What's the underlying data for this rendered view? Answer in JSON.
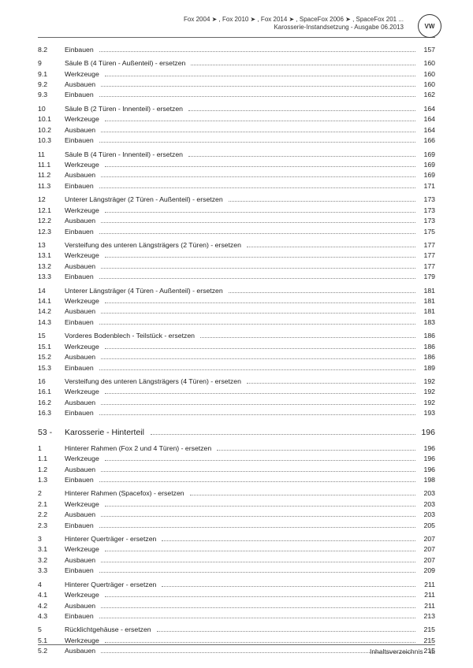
{
  "header": {
    "line1": "Fox 2004 ➤ , Fox 2010 ➤ , Fox 2014 ➤ , SpaceFox 2006 ➤ , SpaceFox 201 ...",
    "line2": "Karosserie-Instandsetzung - Ausgabe 06.2013",
    "logo": "VW"
  },
  "entries": [
    {
      "n": "8.2",
      "t": "Einbauen",
      "p": "157"
    },
    {
      "spacer": true
    },
    {
      "n": "9",
      "t": "Säule B (4 Türen - Außenteil) - ersetzen",
      "p": "160"
    },
    {
      "n": "9.1",
      "t": "Werkzeuge",
      "p": "160"
    },
    {
      "n": "9.2",
      "t": "Ausbauen",
      "p": "160"
    },
    {
      "n": "9.3",
      "t": "Einbauen",
      "p": "162"
    },
    {
      "spacer": true
    },
    {
      "n": "10",
      "t": "Säule B (2 Türen - Innenteil) - ersetzen",
      "p": "164"
    },
    {
      "n": "10.1",
      "t": "Werkzeuge",
      "p": "164"
    },
    {
      "n": "10.2",
      "t": "Ausbauen",
      "p": "164"
    },
    {
      "n": "10.3",
      "t": "Einbauen",
      "p": "166"
    },
    {
      "spacer": true
    },
    {
      "n": "11",
      "t": "Säule B (4 Türen - Innenteil) - ersetzen",
      "p": "169"
    },
    {
      "n": "11.1",
      "t": "Werkzeuge",
      "p": "169"
    },
    {
      "n": "11.2",
      "t": "Ausbauen",
      "p": "169"
    },
    {
      "n": "11.3",
      "t": "Einbauen",
      "p": "171"
    },
    {
      "spacer": true
    },
    {
      "n": "12",
      "t": "Unterer Längsträger (2 Türen - Außenteil) - ersetzen",
      "p": "173"
    },
    {
      "n": "12.1",
      "t": "Werkzeuge",
      "p": "173"
    },
    {
      "n": "12.2",
      "t": "Ausbauen",
      "p": "173"
    },
    {
      "n": "12.3",
      "t": "Einbauen",
      "p": "175"
    },
    {
      "spacer": true
    },
    {
      "n": "13",
      "t": "Versteifung des unteren Längsträgers (2 Türen) - ersetzen",
      "p": "177"
    },
    {
      "n": "13.1",
      "t": "Werkzeuge",
      "p": "177"
    },
    {
      "n": "13.2",
      "t": "Ausbauen",
      "p": "177"
    },
    {
      "n": "13.3",
      "t": "Einbauen",
      "p": "179"
    },
    {
      "spacer": true
    },
    {
      "n": "14",
      "t": "Unterer Längsträger (4 Türen - Außenteil) - ersetzen",
      "p": "181"
    },
    {
      "n": "14.1",
      "t": "Werkzeuge",
      "p": "181"
    },
    {
      "n": "14.2",
      "t": "Ausbauen",
      "p": "181"
    },
    {
      "n": "14.3",
      "t": "Einbauen",
      "p": "183"
    },
    {
      "spacer": true
    },
    {
      "n": "15",
      "t": "Vorderes Bodenblech - Teilstück - ersetzen",
      "p": "186"
    },
    {
      "n": "15.1",
      "t": "Werkzeuge",
      "p": "186"
    },
    {
      "n": "15.2",
      "t": "Ausbauen",
      "p": "186"
    },
    {
      "n": "15.3",
      "t": "Einbauen",
      "p": "189"
    },
    {
      "spacer": true
    },
    {
      "n": "16",
      "t": "Versteifung des unteren Längsträgers (4 Türen) - ersetzen",
      "p": "192"
    },
    {
      "n": "16.1",
      "t": "Werkzeuge",
      "p": "192"
    },
    {
      "n": "16.2",
      "t": "Ausbauen",
      "p": "192"
    },
    {
      "n": "16.3",
      "t": "Einbauen",
      "p": "193"
    },
    {
      "section": true,
      "n": "53 -",
      "t": "Karosserie - Hinterteil",
      "p": "196"
    },
    {
      "n": "1",
      "t": "Hinterer Rahmen (Fox 2 und 4 Türen) - ersetzen",
      "p": "196"
    },
    {
      "n": "1.1",
      "t": "Werkzeuge",
      "p": "196"
    },
    {
      "n": "1.2",
      "t": "Ausbauen",
      "p": "196"
    },
    {
      "n": "1.3",
      "t": "Einbauen",
      "p": "198"
    },
    {
      "spacer": true
    },
    {
      "n": "2",
      "t": "Hinterer Rahmen (Spacefox) - ersetzen",
      "p": "203"
    },
    {
      "n": "2.1",
      "t": "Werkzeuge",
      "p": "203"
    },
    {
      "n": "2.2",
      "t": "Ausbauen",
      "p": "203"
    },
    {
      "n": "2.3",
      "t": "Einbauen",
      "p": "205"
    },
    {
      "spacer": true
    },
    {
      "n": "3",
      "t": "Hinterer Querträger - ersetzen",
      "p": "207"
    },
    {
      "n": "3.1",
      "t": "Werkzeuge",
      "p": "207"
    },
    {
      "n": "3.2",
      "t": "Ausbauen",
      "p": "207"
    },
    {
      "n": "3.3",
      "t": "Einbauen",
      "p": "209"
    },
    {
      "spacer": true
    },
    {
      "n": "4",
      "t": "Hinterer Querträger - ersetzen",
      "p": "211"
    },
    {
      "n": "4.1",
      "t": "Werkzeuge",
      "p": "211"
    },
    {
      "n": "4.2",
      "t": "Ausbauen",
      "p": "211"
    },
    {
      "n": "4.3",
      "t": "Einbauen",
      "p": "213"
    },
    {
      "spacer": true
    },
    {
      "n": "5",
      "t": "Rücklichtgehäuse - ersetzen",
      "p": "215"
    },
    {
      "n": "5.1",
      "t": "Werkzeuge",
      "p": "215"
    },
    {
      "n": "5.2",
      "t": "Ausbauen",
      "p": "215"
    }
  ],
  "footer": {
    "label": "Inhaltsverzeichnis",
    "page": "iii"
  }
}
